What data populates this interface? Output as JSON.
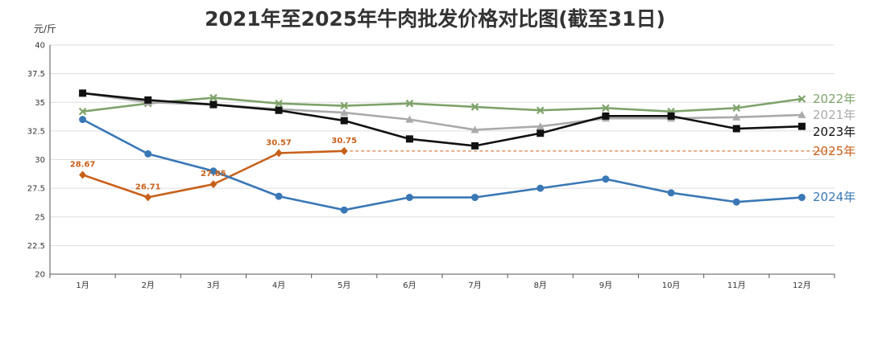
{
  "chart_data": {
    "type": "line",
    "title": "2021年至2025年牛肉批发价格对比图(截至31日)",
    "ylabel": "元/斤",
    "xlabel": "",
    "categories": [
      "1月",
      "2月",
      "3月",
      "4月",
      "5月",
      "6月",
      "7月",
      "8月",
      "9月",
      "10月",
      "11月",
      "12月"
    ],
    "ylim": [
      20,
      40
    ],
    "yticks": [
      "20",
      "22.5",
      "25",
      "27.5",
      "30",
      "32.5",
      "35",
      "37.5",
      "40"
    ],
    "grid": true,
    "series": [
      {
        "name": "2022年",
        "color": "#7ea36a",
        "marker": "x",
        "values": [
          34.2,
          34.9,
          35.4,
          34.9,
          34.7,
          34.9,
          34.6,
          34.3,
          34.5,
          34.2,
          34.5,
          35.3
        ]
      },
      {
        "name": "2021年",
        "color": "#aaaaaa",
        "marker": "triangle",
        "values": [
          35.8,
          35.0,
          34.8,
          34.4,
          34.1,
          33.5,
          32.6,
          32.9,
          33.6,
          33.6,
          33.7,
          33.9
        ]
      },
      {
        "name": "2023年",
        "color": "#111111",
        "marker": "square",
        "values": [
          35.8,
          35.2,
          34.8,
          34.3,
          33.4,
          31.8,
          31.2,
          32.3,
          33.8,
          33.8,
          32.7,
          32.9
        ]
      },
      {
        "name": "2025年",
        "color": "#c8601a",
        "marker": "diamond",
        "values": [
          28.67,
          26.71,
          27.85,
          30.57,
          30.75,
          null,
          null,
          null,
          null,
          null,
          null,
          null
        ],
        "data_labels": [
          "28.67",
          "26.71",
          "27.85",
          "30.57",
          "30.75"
        ],
        "reference_line": 30.75
      },
      {
        "name": "2024年",
        "color": "#3a78b5",
        "marker": "circle",
        "values": [
          33.5,
          30.5,
          29.0,
          26.8,
          25.6,
          26.7,
          26.7,
          27.5,
          28.3,
          27.1,
          26.3,
          26.7
        ]
      }
    ]
  }
}
